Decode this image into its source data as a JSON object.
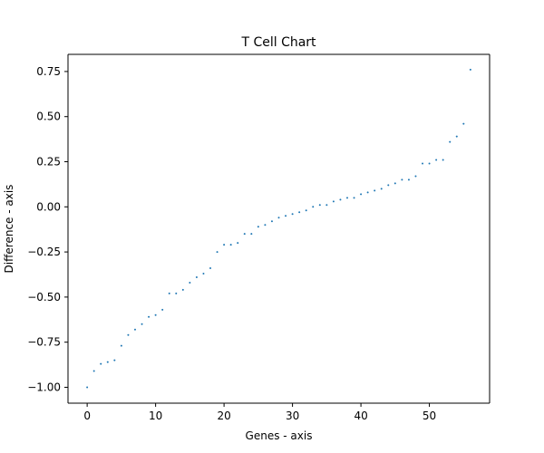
{
  "chart_data": {
    "type": "scatter",
    "title": "T Cell Chart",
    "xlabel": "Genes - axis",
    "ylabel": "Difference - axis",
    "xlim": [
      -2.8,
      58.8
    ],
    "ylim": [
      -1.088,
      0.845
    ],
    "xticks": [
      0,
      10,
      20,
      30,
      40,
      50
    ],
    "xtick_labels": [
      "0",
      "10",
      "20",
      "30",
      "40",
      "50"
    ],
    "yticks": [
      -1.0,
      -0.75,
      -0.5,
      -0.25,
      0.0,
      0.25,
      0.5,
      0.75
    ],
    "ytick_labels": [
      "−1.00",
      "−0.75",
      "−0.50",
      "−0.25",
      "0.00",
      "0.25",
      "0.50",
      "0.75"
    ],
    "grid": false,
    "marker_color": "#1f77b4",
    "x": [
      0,
      1,
      2,
      3,
      4,
      5,
      6,
      7,
      8,
      9,
      10,
      11,
      12,
      13,
      14,
      15,
      16,
      17,
      18,
      19,
      20,
      21,
      22,
      23,
      24,
      25,
      26,
      27,
      28,
      29,
      30,
      31,
      32,
      33,
      34,
      35,
      36,
      37,
      38,
      39,
      40,
      41,
      42,
      43,
      44,
      45,
      46,
      47,
      48,
      49,
      50,
      51,
      52,
      53,
      54,
      55,
      56
    ],
    "y": [
      -1.0,
      -0.91,
      -0.87,
      -0.86,
      -0.85,
      -0.77,
      -0.71,
      -0.68,
      -0.65,
      -0.61,
      -0.6,
      -0.57,
      -0.48,
      -0.48,
      -0.46,
      -0.42,
      -0.39,
      -0.37,
      -0.34,
      -0.25,
      -0.21,
      -0.21,
      -0.2,
      -0.15,
      -0.15,
      -0.11,
      -0.1,
      -0.08,
      -0.06,
      -0.05,
      -0.04,
      -0.03,
      -0.02,
      0.0,
      0.01,
      0.01,
      0.03,
      0.04,
      0.05,
      0.05,
      0.07,
      0.08,
      0.09,
      0.1,
      0.12,
      0.13,
      0.15,
      0.15,
      0.17,
      0.24,
      0.24,
      0.26,
      0.26,
      0.36,
      0.39,
      0.46,
      0.76
    ]
  }
}
